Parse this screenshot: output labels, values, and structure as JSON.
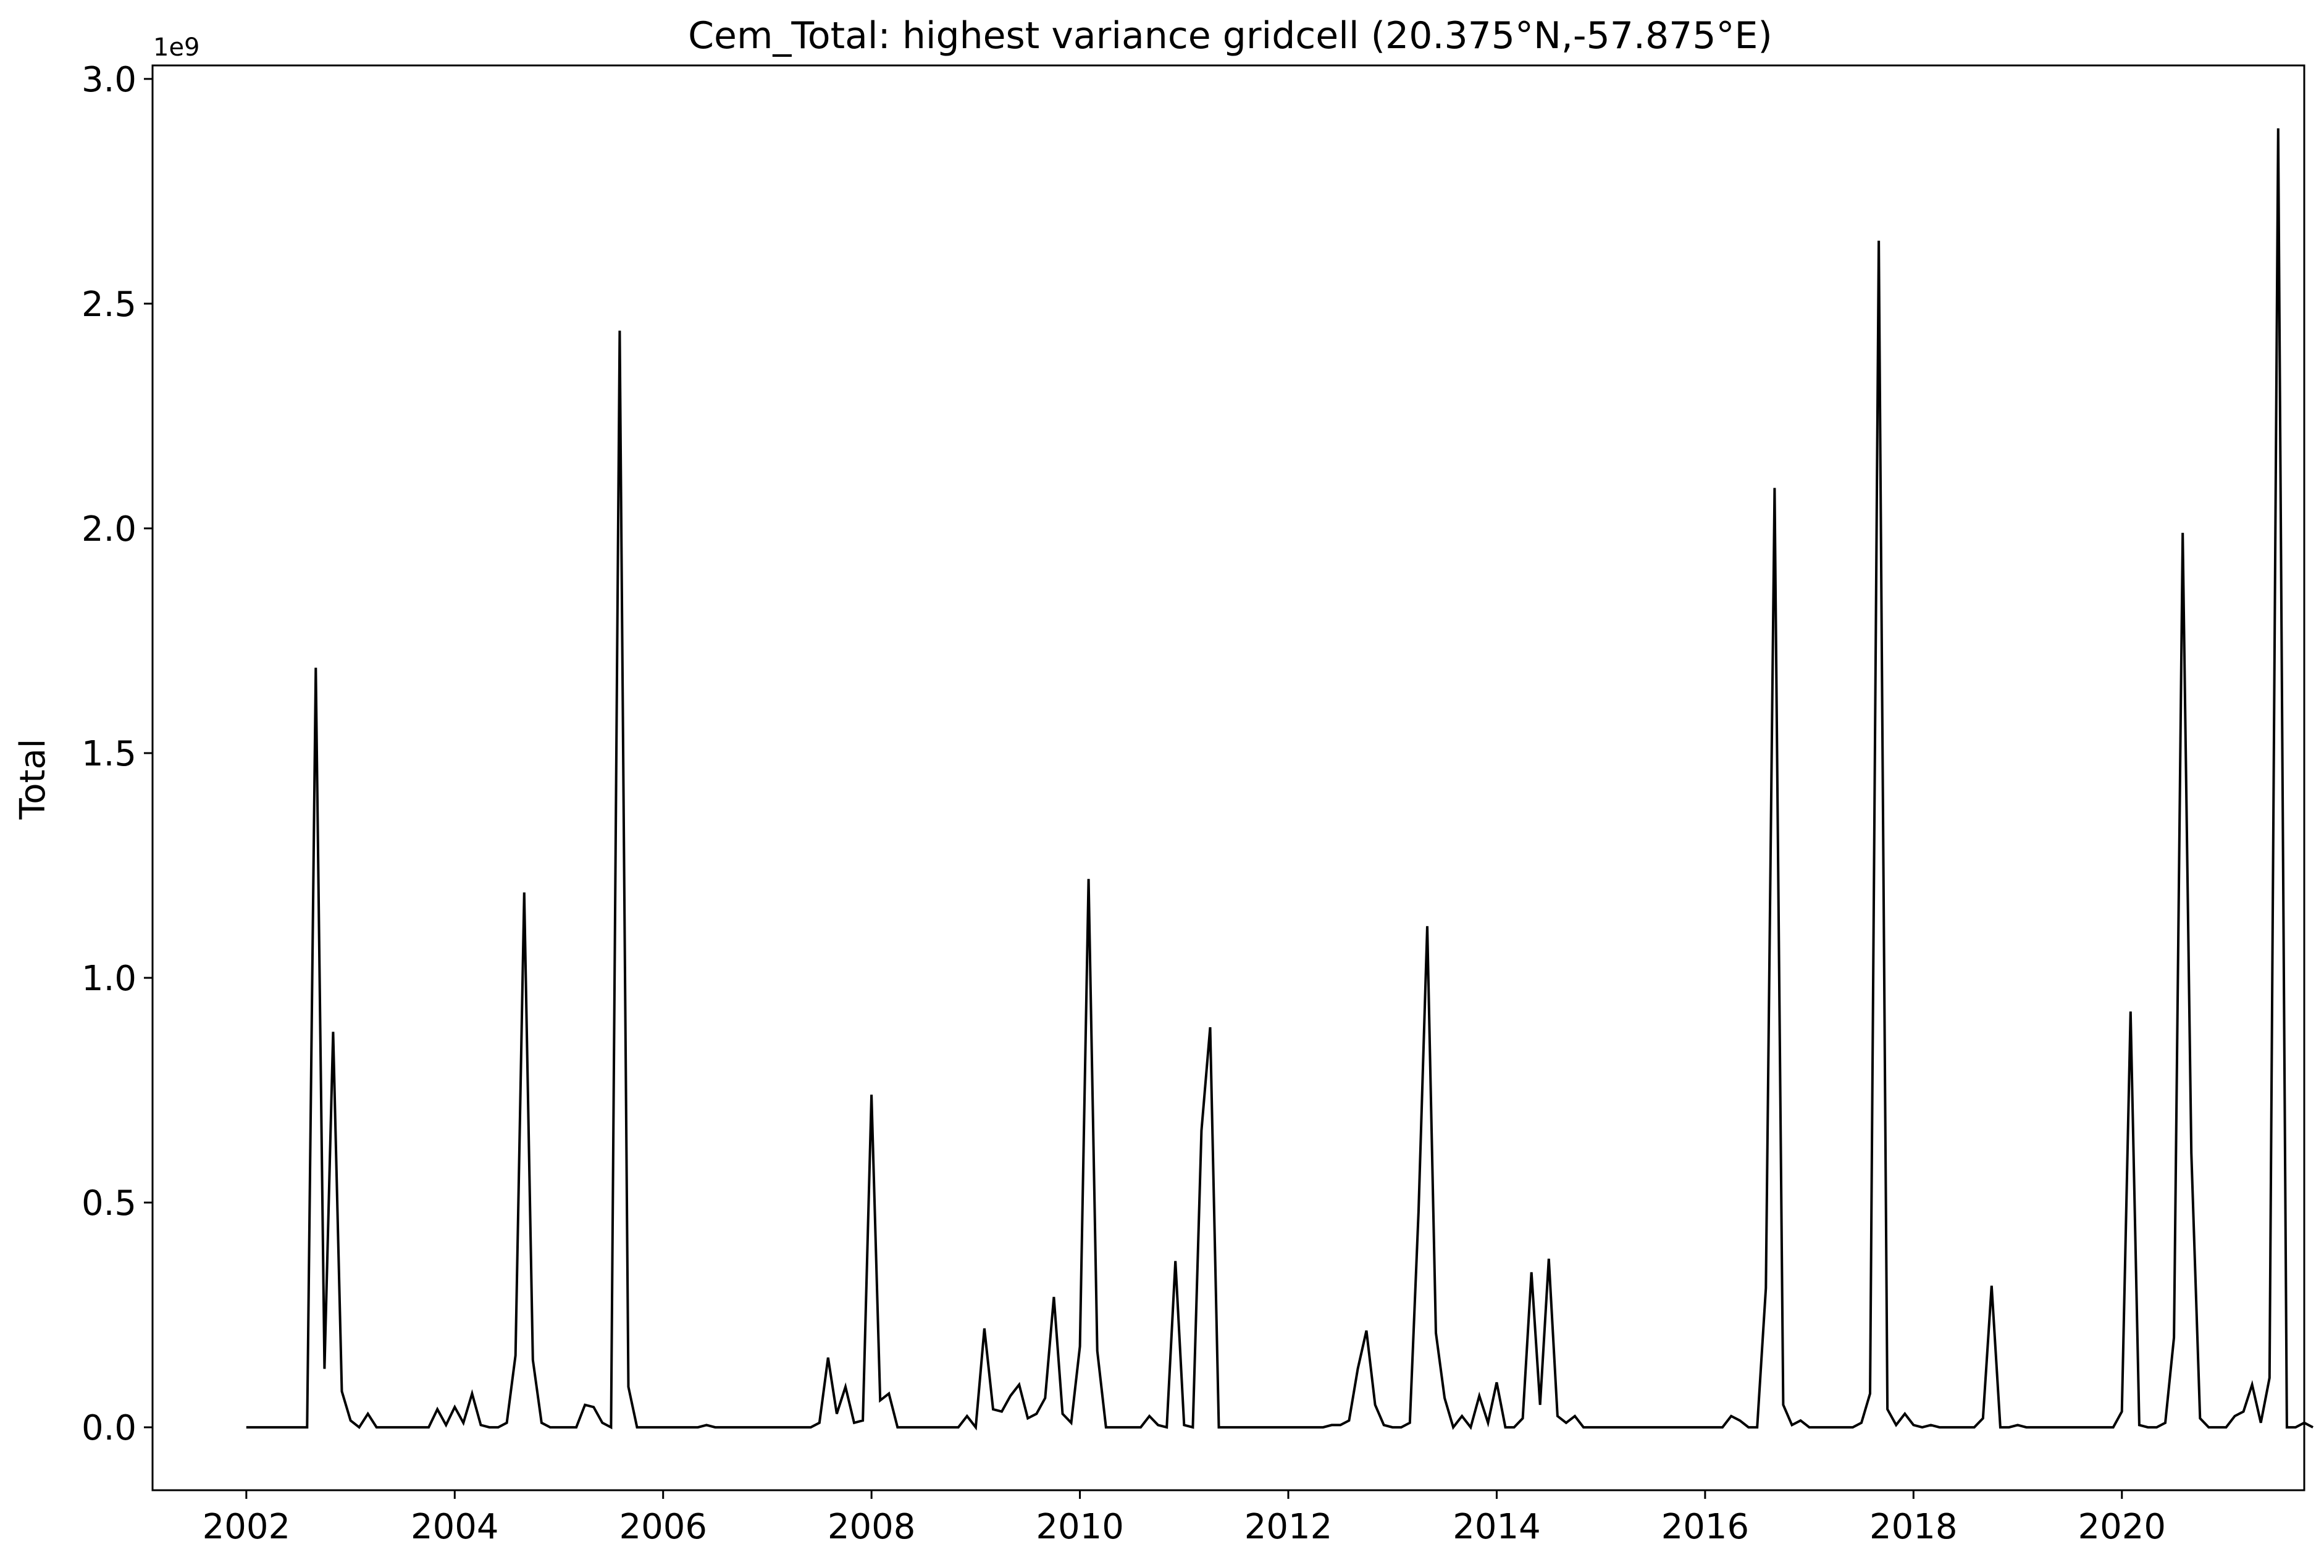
{
  "chart_data": {
    "type": "line",
    "title": "Cem_Total: highest variance gridcell (20.375°N,-57.875°E)",
    "xlabel": "",
    "ylabel": "Total",
    "y_offset_label": "1e9",
    "grid": false,
    "xlim": [
      2001.1,
      2021.75
    ],
    "ylim": [
      -0.14,
      3.03
    ],
    "x_ticks": [
      2002,
      2004,
      2006,
      2008,
      2010,
      2012,
      2014,
      2016,
      2018,
      2020
    ],
    "x_tick_labels": [
      "2002",
      "2004",
      "2006",
      "2008",
      "2010",
      "2012",
      "2014",
      "2016",
      "2018",
      "2020"
    ],
    "y_ticks": [
      0.0,
      0.5,
      1.0,
      1.5,
      2.0,
      2.5,
      3.0
    ],
    "y_tick_labels": [
      "0.0",
      "0.5",
      "1.0",
      "1.5",
      "2.0",
      "2.5",
      "3.0"
    ],
    "line_color": "#000000",
    "series": [
      {
        "start_year": 2002,
        "step_months": 1,
        "values": [
          0,
          0,
          0,
          0,
          0,
          0,
          0,
          0,
          1.69,
          0.13,
          0.88,
          0.08,
          0.015,
          0.0,
          0.03,
          0.0,
          0.0,
          0.0,
          0.0,
          0.0,
          0.0,
          0.0,
          0.04,
          0.005,
          0.045,
          0.01,
          0.075,
          0.005,
          0.0,
          0.0,
          0.01,
          0.16,
          1.19,
          0.15,
          0.01,
          0.0,
          0.0,
          0.0,
          0.0,
          0.05,
          0.045,
          0.01,
          0.0,
          2.44,
          0.09,
          0.0,
          0.0,
          0.0,
          0.0,
          0.0,
          0.0,
          0.0,
          0.0,
          0.005,
          0.0,
          0.0,
          0.0,
          0.0,
          0.0,
          0.0,
          0.0,
          0.0,
          0.0,
          0.0,
          0.0,
          0.0,
          0.01,
          0.155,
          0.03,
          0.09,
          0.01,
          0.015,
          0.74,
          0.06,
          0.075,
          0.0,
          0.0,
          0.0,
          0.0,
          0.0,
          0.0,
          0.0,
          0.0,
          0.025,
          0.0,
          0.22,
          0.04,
          0.035,
          0.07,
          0.095,
          0.02,
          0.03,
          0.065,
          0.29,
          0.03,
          0.01,
          0.18,
          1.22,
          0.17,
          0.0,
          0.0,
          0.0,
          0.0,
          0.0,
          0.025,
          0.005,
          0.0,
          0.37,
          0.005,
          0.0,
          0.66,
          0.89,
          0.0,
          0.0,
          0.0,
          0.0,
          0.0,
          0.0,
          0.0,
          0.0,
          0.0,
          0.0,
          0.0,
          0.0,
          0.0,
          0.005,
          0.005,
          0.015,
          0.13,
          0.215,
          0.05,
          0.005,
          0.0,
          0.0,
          0.01,
          0.48,
          1.115,
          0.21,
          0.065,
          0.0,
          0.025,
          0.0,
          0.07,
          0.01,
          0.1,
          0.0,
          0.0,
          0.02,
          0.345,
          0.05,
          0.375,
          0.025,
          0.01,
          0.025,
          0.0,
          0.0,
          0.0,
          0.0,
          0.0,
          0.0,
          0.0,
          0.0,
          0.0,
          0.0,
          0.0,
          0.0,
          0.0,
          0.0,
          0.0,
          0.0,
          0.0,
          0.025,
          0.015,
          0.0,
          0.0,
          0.31,
          2.09,
          0.05,
          0.005,
          0.015,
          0.0,
          0.0,
          0.0,
          0.0,
          0.0,
          0.0,
          0.01,
          0.075,
          2.64,
          0.04,
          0.005,
          0.03,
          0.005,
          0.0,
          0.005,
          0.0,
          0.0,
          0.0,
          0.0,
          0.0,
          0.02,
          0.315,
          0.0,
          0.0,
          0.005,
          0.0,
          0.0,
          0.0,
          0.0,
          0.0,
          0.0,
          0.0,
          0.0,
          0.0,
          0.0,
          0.0,
          0.035,
          0.925,
          0.005,
          0.0,
          0.0,
          0.01,
          0.2,
          1.99,
          0.61,
          0.02,
          0.0,
          0.0,
          0.0,
          0.025,
          0.035,
          0.095,
          0.01,
          0.11,
          2.89,
          0.0,
          0.0,
          0.01,
          0.0
        ]
      }
    ]
  }
}
